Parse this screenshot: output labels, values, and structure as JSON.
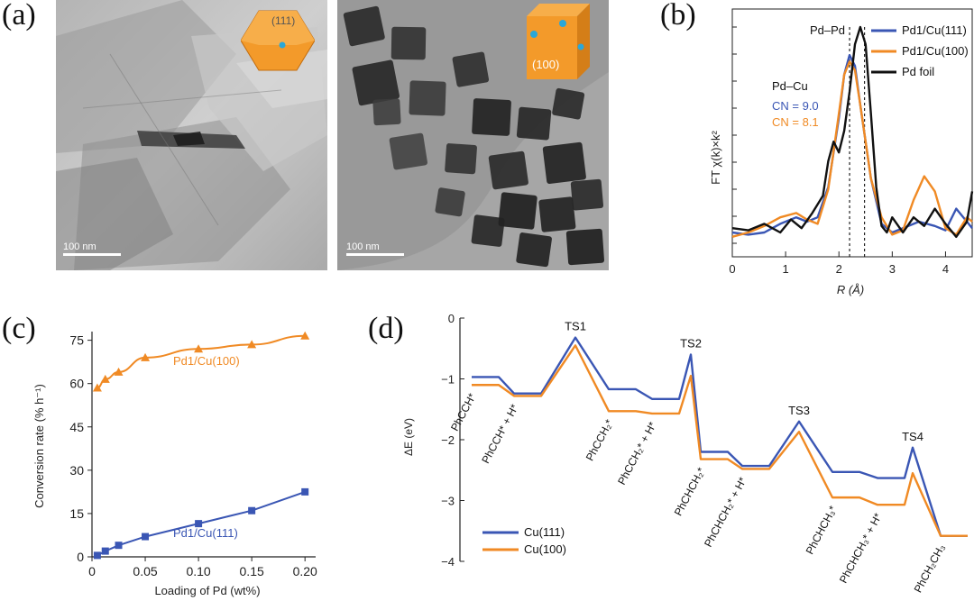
{
  "panel_labels": {
    "a": "(a)",
    "b": "(b)",
    "c": "(c)",
    "d": "(d)"
  },
  "panel_a": {
    "left_scale": "100 nm",
    "right_scale": "100 nm",
    "left_facet": "(111)",
    "right_facet": "(100)"
  },
  "colors": {
    "blue": "#3a56b4",
    "orange": "#f08a24",
    "black": "#111111"
  },
  "chart_data": [
    {
      "id": "b",
      "type": "line",
      "xlabel": "R (Å)",
      "ylabel": "FT χ(k)×k²",
      "xlim": [
        0,
        4.5
      ],
      "xticks": [
        "0",
        "1",
        "2",
        "3",
        "4"
      ],
      "annotations": {
        "pdpd": "Pd–Pd",
        "pdcu": "Pd–Cu",
        "cn_blue": "CN = 9.0",
        "cn_orange": "CN = 8.1"
      },
      "dashed_lines_x": [
        2.2,
        2.48
      ],
      "series": [
        {
          "name": "Pd1/Cu(111)",
          "color": "#3a56b4",
          "x": [
            0,
            0.3,
            0.6,
            0.9,
            1.2,
            1.4,
            1.6,
            1.8,
            2.0,
            2.1,
            2.2,
            2.3,
            2.4,
            2.6,
            2.8,
            3.0,
            3.2,
            3.5,
            3.8,
            4.0,
            4.2,
            4.4,
            4.5
          ],
          "y": [
            0.05,
            0.04,
            0.05,
            0.09,
            0.12,
            0.1,
            0.12,
            0.26,
            0.58,
            0.78,
            0.87,
            0.82,
            0.64,
            0.3,
            0.09,
            0.05,
            0.07,
            0.1,
            0.08,
            0.06,
            0.16,
            0.1,
            0.07
          ]
        },
        {
          "name": "Pd1/Cu(100)",
          "color": "#f08a24",
          "x": [
            0,
            0.3,
            0.6,
            0.9,
            1.2,
            1.4,
            1.6,
            1.8,
            2.0,
            2.1,
            2.2,
            2.3,
            2.4,
            2.6,
            2.8,
            3.0,
            3.2,
            3.4,
            3.6,
            3.8,
            4.0,
            4.2,
            4.4,
            4.5
          ],
          "y": [
            0.03,
            0.05,
            0.08,
            0.12,
            0.14,
            0.11,
            0.09,
            0.25,
            0.6,
            0.78,
            0.84,
            0.8,
            0.64,
            0.3,
            0.12,
            0.04,
            0.06,
            0.2,
            0.31,
            0.24,
            0.07,
            0.04,
            0.12,
            0.1
          ]
        },
        {
          "name": "Pd foil",
          "color": "#111111",
          "x": [
            0,
            0.3,
            0.6,
            0.9,
            1.1,
            1.3,
            1.5,
            1.7,
            1.8,
            1.9,
            2.0,
            2.1,
            2.2,
            2.3,
            2.4,
            2.5,
            2.6,
            2.7,
            2.8,
            2.9,
            3.0,
            3.2,
            3.4,
            3.6,
            3.8,
            4.0,
            4.2,
            4.4,
            4.5
          ],
          "y": [
            0.07,
            0.06,
            0.09,
            0.05,
            0.11,
            0.07,
            0.14,
            0.22,
            0.38,
            0.47,
            0.42,
            0.52,
            0.7,
            0.92,
            1.0,
            0.92,
            0.6,
            0.26,
            0.08,
            0.05,
            0.12,
            0.05,
            0.12,
            0.08,
            0.16,
            0.09,
            0.03,
            0.1,
            0.24
          ]
        }
      ]
    },
    {
      "id": "c",
      "type": "line",
      "xlabel": "Loading of Pd (wt%)",
      "ylabel": "Conversion rate (% h⁻¹)",
      "xlim": [
        0,
        0.21
      ],
      "ylim": [
        0,
        78
      ],
      "xticks": [
        "0",
        "0.05",
        "0.10",
        "0.15",
        "0.20"
      ],
      "yticks": [
        "0",
        "15",
        "30",
        "45",
        "60",
        "75"
      ],
      "series": [
        {
          "name": "Pd1/Cu(100)",
          "color": "#f08a24",
          "marker": "triangle",
          "x": [
            0.005,
            0.0125,
            0.025,
            0.05,
            0.1,
            0.15,
            0.2
          ],
          "y": [
            58.5,
            61.5,
            64,
            69,
            72,
            73.5,
            76.5
          ]
        },
        {
          "name": "Pd1/Cu(111)",
          "color": "#3a56b4",
          "marker": "square",
          "x": [
            0.005,
            0.0125,
            0.025,
            0.05,
            0.1,
            0.15,
            0.2
          ],
          "y": [
            0.5,
            2,
            4,
            7,
            11.5,
            16,
            22.5
          ]
        }
      ],
      "labels": {
        "orange": "Pd1/Cu(100)",
        "blue": "Pd1/Cu(111)"
      }
    },
    {
      "id": "d",
      "type": "line",
      "ylabel": "ΔE (eV)",
      "ylim": [
        -4,
        0
      ],
      "yticks": [
        "0",
        "−1",
        "−2",
        "−3",
        "−4"
      ],
      "transition_states": [
        "TS1",
        "TS2",
        "TS3",
        "TS4"
      ],
      "states": [
        "PhCCH*",
        "PhCCH* + H*",
        "PhCCH₂*",
        "PhCCH₂* + H*",
        "PhCHCH₂*",
        "PhCHCH₂* + H*",
        "PhCHCH₃*",
        "PhCHCH₃* + H*",
        "PhCH₂CH₃"
      ],
      "series": [
        {
          "name": "Cu(111)",
          "color": "#3a56b4",
          "levels": [
            -0.97,
            -1.24,
            -0.32,
            -1.17,
            -1.33,
            -0.6,
            -2.2,
            -2.43,
            -1.7,
            -2.53,
            -2.63,
            -2.13,
            -3.58
          ]
        },
        {
          "name": "Cu(100)",
          "color": "#f08a24",
          "levels": [
            -1.1,
            -1.28,
            -0.45,
            -1.53,
            -1.57,
            -0.95,
            -2.32,
            -2.48,
            -1.87,
            -2.95,
            -3.07,
            -2.55,
            -3.58
          ]
        }
      ]
    }
  ]
}
